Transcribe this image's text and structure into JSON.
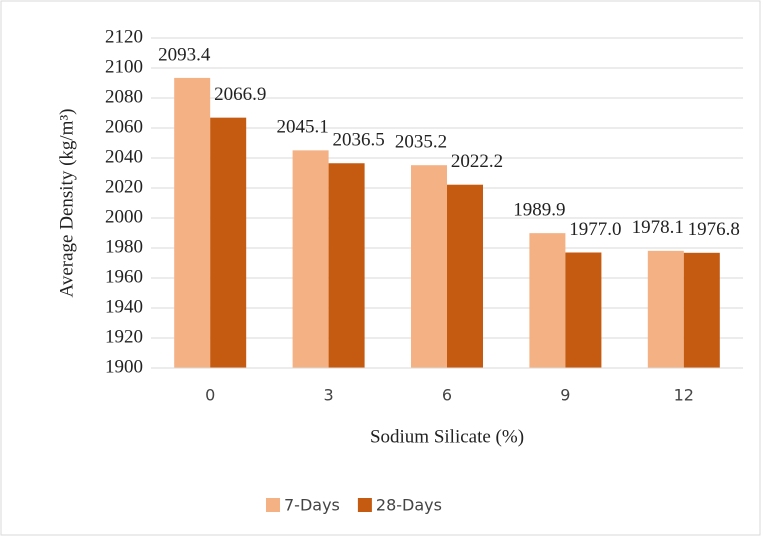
{
  "chart_data": {
    "type": "bar",
    "categories": [
      "0",
      "3",
      "6",
      "9",
      "12"
    ],
    "series": [
      {
        "name": "7-Days",
        "color": "#f4b183",
        "values": [
          2093.4,
          2045.1,
          2035.2,
          1989.9,
          1978.1
        ],
        "value_labels": [
          "2093.4",
          "2045.1",
          "2035.2",
          "1989.9",
          "1978.1"
        ]
      },
      {
        "name": "28-Days",
        "color": "#c55a11",
        "values": [
          2066.9,
          2036.5,
          2022.2,
          1977.0,
          1976.8
        ],
        "value_labels": [
          "2066.9",
          "2036.5",
          "2022.2",
          "1977.0",
          "1976.8"
        ]
      }
    ],
    "xlabel": "Sodium Silicate (%)",
    "ylabel": "Average Density (kg/m³)",
    "ylim": [
      1900,
      2120
    ],
    "yticks": [
      1900,
      1920,
      1940,
      1960,
      1980,
      2000,
      2020,
      2040,
      2060,
      2080,
      2100,
      2120
    ],
    "grid": true,
    "legend": "bottom"
  }
}
